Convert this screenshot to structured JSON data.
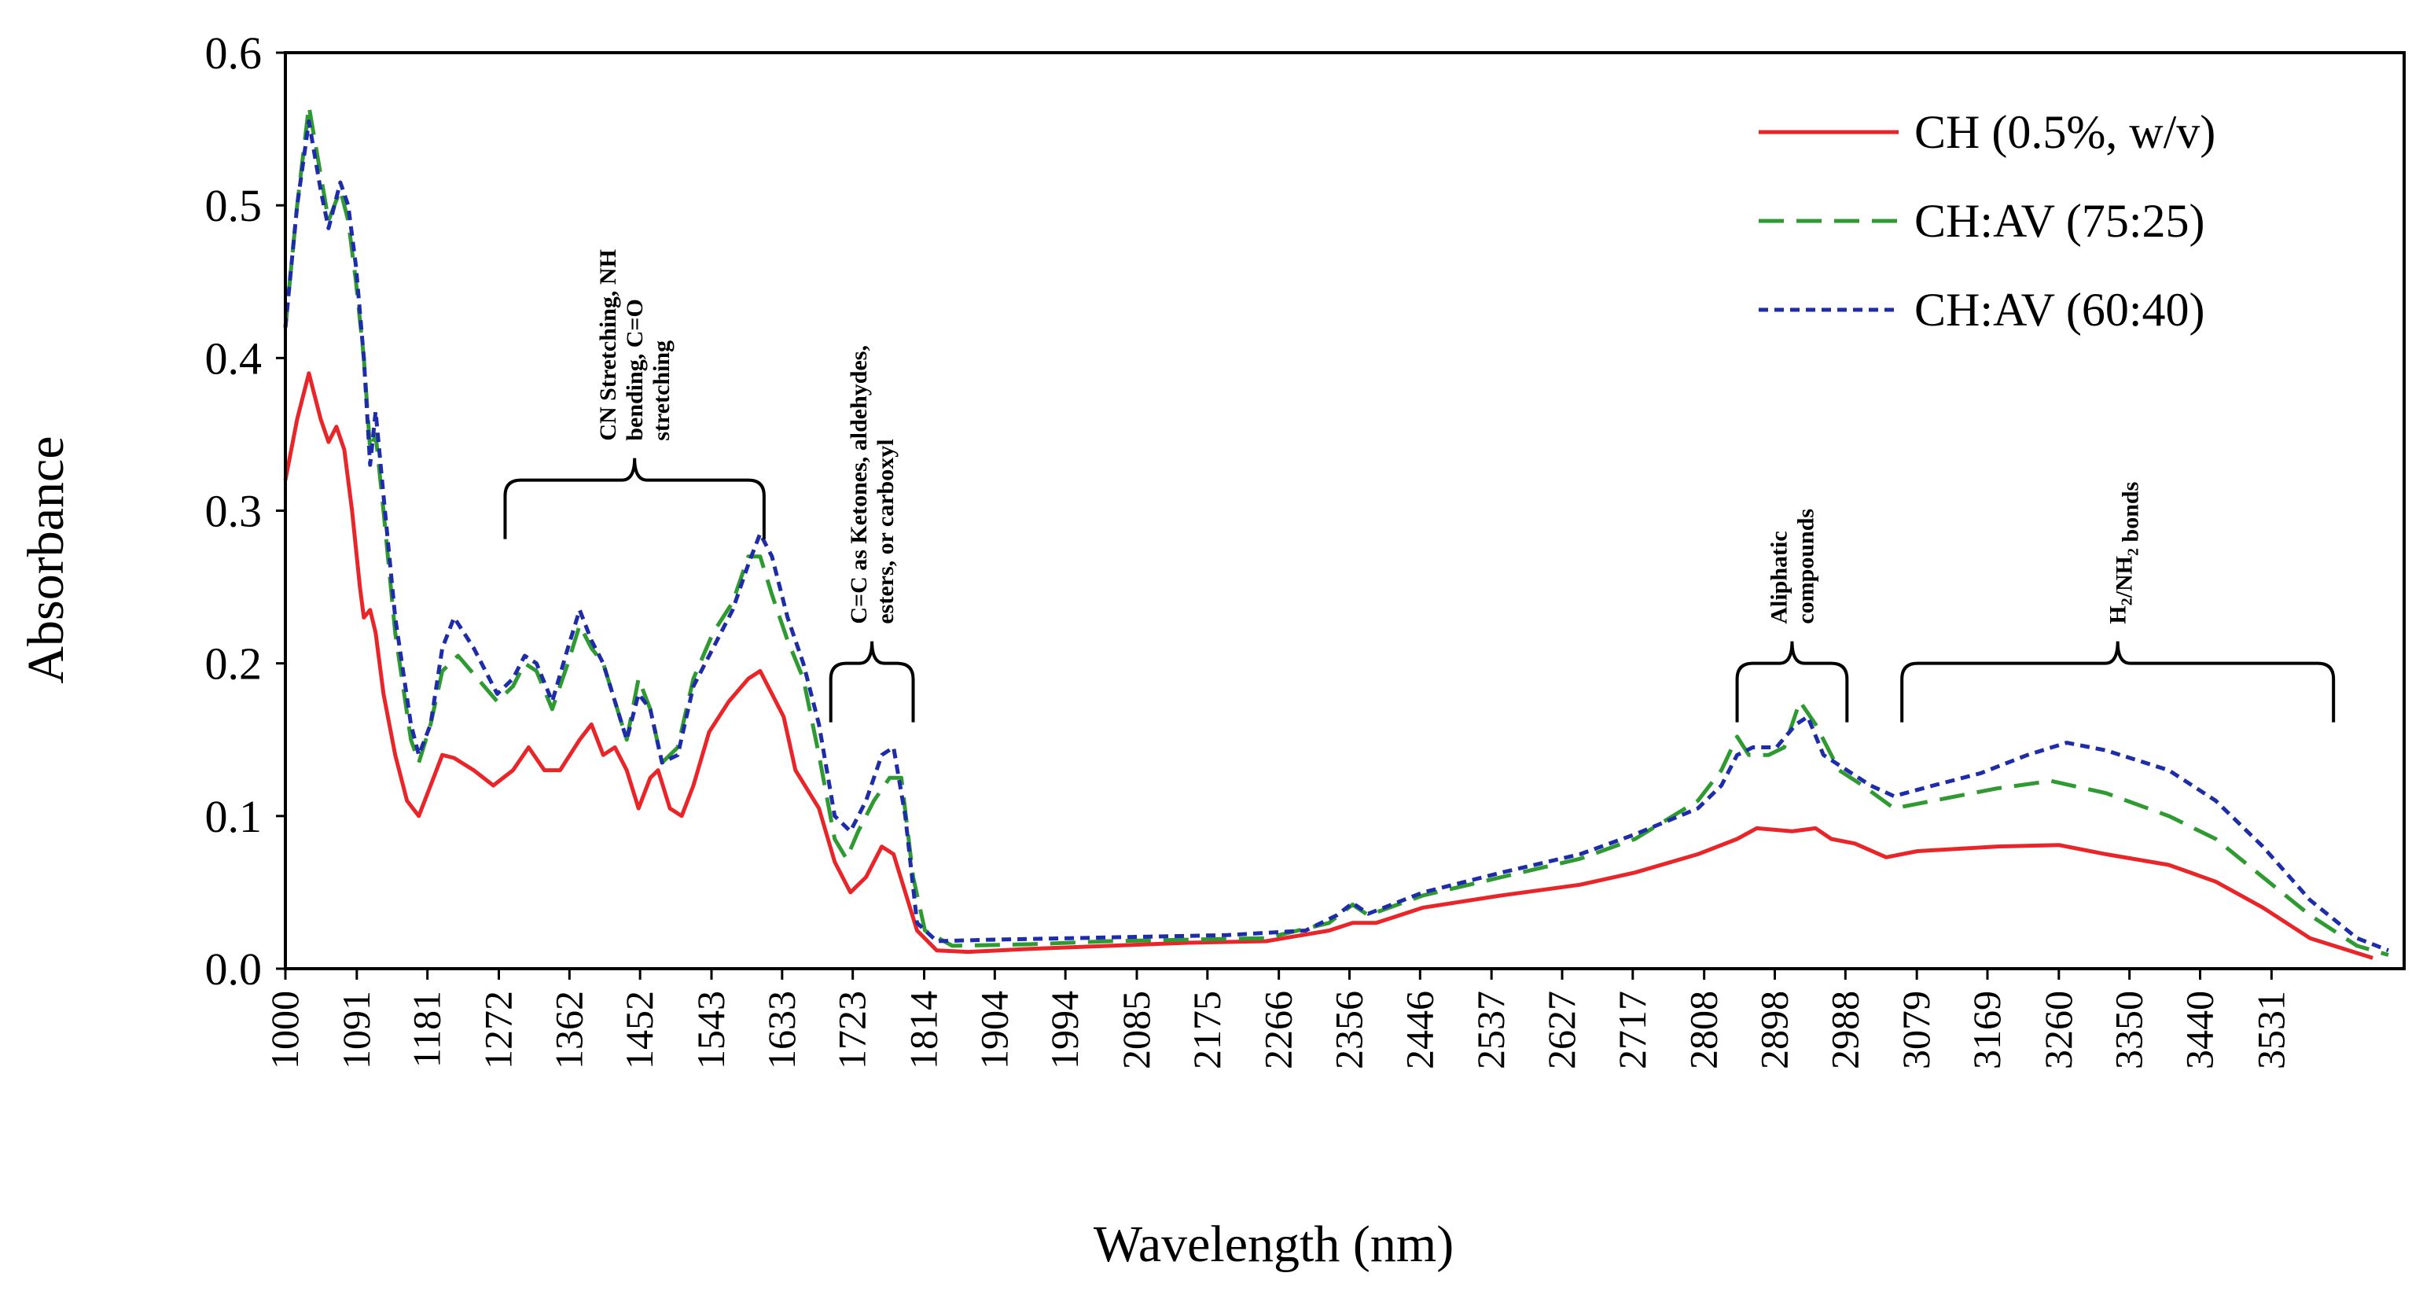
{
  "chart_data": {
    "type": "line",
    "title": "",
    "xlabel": "Wavelength (nm)",
    "ylabel": "Absorbance",
    "xlim": [
      1000,
      3700
    ],
    "ylim": [
      0,
      0.6
    ],
    "grid": false,
    "legend_position": "top-right",
    "x_tick_labels": [
      "1000",
      "1091",
      "1181",
      "1272",
      "1362",
      "1452",
      "1543",
      "1633",
      "1723",
      "1814",
      "1904",
      "1994",
      "2085",
      "2175",
      "2266",
      "2356",
      "2446",
      "2537",
      "2627",
      "2717",
      "2808",
      "2898",
      "2988",
      "3079",
      "3169",
      "3260",
      "3350",
      "3440",
      "3531"
    ],
    "y_tick_labels": [
      "0.0",
      "0.1",
      "0.2",
      "0.3",
      "0.4",
      "0.5",
      "0.6"
    ],
    "series": [
      {
        "name": "CH (0.5%, w/v)",
        "color": "#e8262a",
        "dash": "solid",
        "points": [
          [
            1000,
            0.32
          ],
          [
            1015,
            0.36
          ],
          [
            1030,
            0.39
          ],
          [
            1045,
            0.36
          ],
          [
            1055,
            0.345
          ],
          [
            1065,
            0.355
          ],
          [
            1075,
            0.34
          ],
          [
            1085,
            0.3
          ],
          [
            1095,
            0.25
          ],
          [
            1100,
            0.23
          ],
          [
            1108,
            0.235
          ],
          [
            1115,
            0.22
          ],
          [
            1125,
            0.18
          ],
          [
            1140,
            0.14
          ],
          [
            1155,
            0.11
          ],
          [
            1170,
            0.1
          ],
          [
            1185,
            0.12
          ],
          [
            1200,
            0.14
          ],
          [
            1215,
            0.138
          ],
          [
            1240,
            0.13
          ],
          [
            1265,
            0.12
          ],
          [
            1290,
            0.13
          ],
          [
            1310,
            0.145
          ],
          [
            1330,
            0.13
          ],
          [
            1350,
            0.13
          ],
          [
            1375,
            0.15
          ],
          [
            1390,
            0.16
          ],
          [
            1405,
            0.14
          ],
          [
            1420,
            0.145
          ],
          [
            1435,
            0.13
          ],
          [
            1450,
            0.105
          ],
          [
            1465,
            0.125
          ],
          [
            1475,
            0.13
          ],
          [
            1490,
            0.105
          ],
          [
            1505,
            0.1
          ],
          [
            1520,
            0.12
          ],
          [
            1540,
            0.155
          ],
          [
            1565,
            0.175
          ],
          [
            1590,
            0.19
          ],
          [
            1605,
            0.195
          ],
          [
            1620,
            0.18
          ],
          [
            1635,
            0.165
          ],
          [
            1650,
            0.13
          ],
          [
            1680,
            0.105
          ],
          [
            1700,
            0.07
          ],
          [
            1720,
            0.05
          ],
          [
            1740,
            0.06
          ],
          [
            1760,
            0.08
          ],
          [
            1775,
            0.075
          ],
          [
            1790,
            0.05
          ],
          [
            1805,
            0.025
          ],
          [
            1830,
            0.012
          ],
          [
            1870,
            0.011
          ],
          [
            1950,
            0.013
          ],
          [
            2050,
            0.015
          ],
          [
            2150,
            0.017
          ],
          [
            2250,
            0.018
          ],
          [
            2330,
            0.025
          ],
          [
            2360,
            0.03
          ],
          [
            2390,
            0.03
          ],
          [
            2450,
            0.04
          ],
          [
            2550,
            0.048
          ],
          [
            2650,
            0.055
          ],
          [
            2720,
            0.063
          ],
          [
            2800,
            0.075
          ],
          [
            2850,
            0.085
          ],
          [
            2875,
            0.092
          ],
          [
            2920,
            0.09
          ],
          [
            2950,
            0.092
          ],
          [
            2970,
            0.085
          ],
          [
            3000,
            0.082
          ],
          [
            3040,
            0.073
          ],
          [
            3080,
            0.077
          ],
          [
            3180,
            0.08
          ],
          [
            3260,
            0.081
          ],
          [
            3320,
            0.075
          ],
          [
            3400,
            0.068
          ],
          [
            3460,
            0.057
          ],
          [
            3520,
            0.04
          ],
          [
            3580,
            0.02
          ],
          [
            3660,
            0.007
          ]
        ]
      },
      {
        "name": "CH:AV (75:25)",
        "color": "#2e9a31",
        "dash": "long-dash",
        "points": [
          [
            1000,
            0.42
          ],
          [
            1015,
            0.5
          ],
          [
            1030,
            0.565
          ],
          [
            1045,
            0.52
          ],
          [
            1055,
            0.49
          ],
          [
            1070,
            0.51
          ],
          [
            1080,
            0.49
          ],
          [
            1090,
            0.45
          ],
          [
            1100,
            0.4
          ],
          [
            1108,
            0.34
          ],
          [
            1115,
            0.35
          ],
          [
            1125,
            0.3
          ],
          [
            1140,
            0.22
          ],
          [
            1160,
            0.15
          ],
          [
            1170,
            0.135
          ],
          [
            1185,
            0.16
          ],
          [
            1200,
            0.195
          ],
          [
            1220,
            0.205
          ],
          [
            1245,
            0.19
          ],
          [
            1270,
            0.175
          ],
          [
            1290,
            0.185
          ],
          [
            1305,
            0.2
          ],
          [
            1320,
            0.195
          ],
          [
            1340,
            0.17
          ],
          [
            1360,
            0.2
          ],
          [
            1375,
            0.225
          ],
          [
            1390,
            0.21
          ],
          [
            1405,
            0.2
          ],
          [
            1420,
            0.175
          ],
          [
            1435,
            0.15
          ],
          [
            1450,
            0.19
          ],
          [
            1465,
            0.17
          ],
          [
            1480,
            0.135
          ],
          [
            1500,
            0.145
          ],
          [
            1520,
            0.19
          ],
          [
            1545,
            0.22
          ],
          [
            1570,
            0.24
          ],
          [
            1590,
            0.27
          ],
          [
            1605,
            0.27
          ],
          [
            1620,
            0.245
          ],
          [
            1640,
            0.215
          ],
          [
            1660,
            0.19
          ],
          [
            1680,
            0.14
          ],
          [
            1700,
            0.085
          ],
          [
            1715,
            0.072
          ],
          [
            1730,
            0.09
          ],
          [
            1750,
            0.11
          ],
          [
            1770,
            0.125
          ],
          [
            1785,
            0.125
          ],
          [
            1800,
            0.06
          ],
          [
            1815,
            0.025
          ],
          [
            1850,
            0.015
          ],
          [
            1950,
            0.016
          ],
          [
            2050,
            0.018
          ],
          [
            2150,
            0.019
          ],
          [
            2250,
            0.02
          ],
          [
            2330,
            0.03
          ],
          [
            2360,
            0.042
          ],
          [
            2380,
            0.035
          ],
          [
            2450,
            0.048
          ],
          [
            2550,
            0.06
          ],
          [
            2650,
            0.072
          ],
          [
            2720,
            0.085
          ],
          [
            2800,
            0.11
          ],
          [
            2830,
            0.13
          ],
          [
            2850,
            0.152
          ],
          [
            2865,
            0.14
          ],
          [
            2890,
            0.14
          ],
          [
            2910,
            0.145
          ],
          [
            2930,
            0.175
          ],
          [
            2950,
            0.16
          ],
          [
            2980,
            0.13
          ],
          [
            3010,
            0.12
          ],
          [
            3050,
            0.105
          ],
          [
            3100,
            0.11
          ],
          [
            3180,
            0.118
          ],
          [
            3250,
            0.123
          ],
          [
            3320,
            0.115
          ],
          [
            3400,
            0.1
          ],
          [
            3460,
            0.085
          ],
          [
            3520,
            0.06
          ],
          [
            3580,
            0.035
          ],
          [
            3640,
            0.015
          ],
          [
            3680,
            0.009
          ]
        ]
      },
      {
        "name": "CH:AV (60:40)",
        "color": "#1e2ca8",
        "dash": "short-dash",
        "points": [
          [
            1000,
            0.42
          ],
          [
            1015,
            0.5
          ],
          [
            1030,
            0.555
          ],
          [
            1045,
            0.51
          ],
          [
            1055,
            0.485
          ],
          [
            1070,
            0.515
          ],
          [
            1080,
            0.5
          ],
          [
            1090,
            0.46
          ],
          [
            1100,
            0.4
          ],
          [
            1108,
            0.33
          ],
          [
            1115,
            0.365
          ],
          [
            1125,
            0.31
          ],
          [
            1140,
            0.23
          ],
          [
            1160,
            0.16
          ],
          [
            1170,
            0.14
          ],
          [
            1185,
            0.16
          ],
          [
            1200,
            0.21
          ],
          [
            1215,
            0.23
          ],
          [
            1240,
            0.21
          ],
          [
            1270,
            0.18
          ],
          [
            1290,
            0.19
          ],
          [
            1305,
            0.205
          ],
          [
            1320,
            0.2
          ],
          [
            1340,
            0.175
          ],
          [
            1360,
            0.21
          ],
          [
            1375,
            0.235
          ],
          [
            1390,
            0.215
          ],
          [
            1405,
            0.2
          ],
          [
            1420,
            0.175
          ],
          [
            1435,
            0.15
          ],
          [
            1450,
            0.18
          ],
          [
            1465,
            0.17
          ],
          [
            1480,
            0.135
          ],
          [
            1500,
            0.14
          ],
          [
            1520,
            0.185
          ],
          [
            1545,
            0.21
          ],
          [
            1570,
            0.235
          ],
          [
            1590,
            0.265
          ],
          [
            1605,
            0.285
          ],
          [
            1620,
            0.27
          ],
          [
            1640,
            0.23
          ],
          [
            1660,
            0.2
          ],
          [
            1680,
            0.16
          ],
          [
            1700,
            0.1
          ],
          [
            1720,
            0.09
          ],
          [
            1740,
            0.11
          ],
          [
            1760,
            0.14
          ],
          [
            1775,
            0.145
          ],
          [
            1790,
            0.1
          ],
          [
            1805,
            0.03
          ],
          [
            1830,
            0.018
          ],
          [
            1900,
            0.019
          ],
          [
            2000,
            0.02
          ],
          [
            2100,
            0.021
          ],
          [
            2200,
            0.022
          ],
          [
            2300,
            0.025
          ],
          [
            2340,
            0.035
          ],
          [
            2360,
            0.043
          ],
          [
            2380,
            0.036
          ],
          [
            2450,
            0.05
          ],
          [
            2550,
            0.063
          ],
          [
            2650,
            0.075
          ],
          [
            2720,
            0.088
          ],
          [
            2800,
            0.105
          ],
          [
            2830,
            0.12
          ],
          [
            2850,
            0.14
          ],
          [
            2870,
            0.145
          ],
          [
            2900,
            0.145
          ],
          [
            2925,
            0.16
          ],
          [
            2940,
            0.165
          ],
          [
            2960,
            0.14
          ],
          [
            2990,
            0.13
          ],
          [
            3020,
            0.12
          ],
          [
            3050,
            0.113
          ],
          [
            3100,
            0.12
          ],
          [
            3160,
            0.128
          ],
          [
            3220,
            0.14
          ],
          [
            3270,
            0.148
          ],
          [
            3320,
            0.143
          ],
          [
            3400,
            0.13
          ],
          [
            3460,
            0.11
          ],
          [
            3520,
            0.08
          ],
          [
            3580,
            0.045
          ],
          [
            3640,
            0.02
          ],
          [
            3680,
            0.012
          ]
        ]
      }
    ],
    "annotations": [
      {
        "id": "cn",
        "lines": [
          "CN Stretching, NH",
          "bending, C=O",
          "stretching"
        ],
        "bracket_x": [
          1280,
          1610
        ],
        "bracket_y": 0.32
      },
      {
        "id": "cc",
        "lines": [
          "C=C as Ketones, aldehydes,",
          "esters, or carboxyl"
        ],
        "bracket_x": [
          1695,
          1800
        ],
        "bracket_y": 0.2
      },
      {
        "id": "aliphatic",
        "lines": [
          "Aliphatic",
          "compounds"
        ],
        "bracket_x": [
          2850,
          2990
        ],
        "bracket_y": 0.2
      },
      {
        "id": "h2nh2",
        "lines": [
          "H2/NH2 bonds"
        ],
        "bracket_x": [
          3060,
          3610
        ],
        "bracket_y": 0.2
      }
    ]
  }
}
